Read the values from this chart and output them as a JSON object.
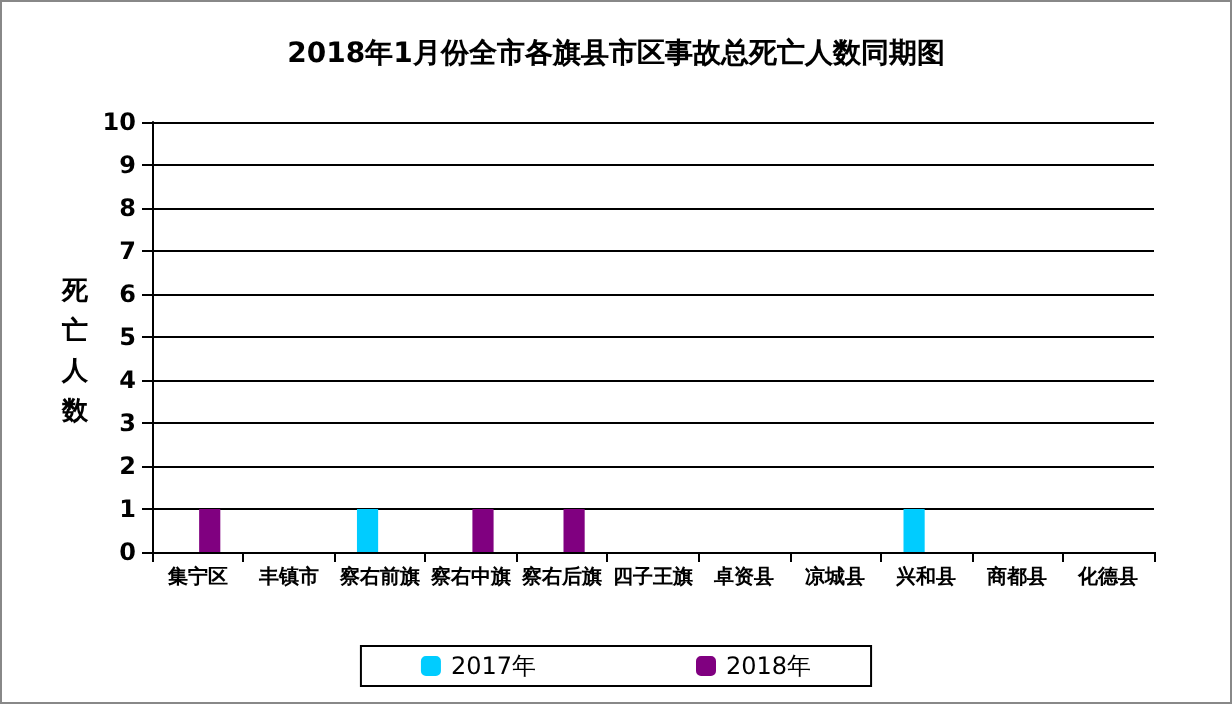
{
  "chart_data": {
    "type": "bar",
    "title": "2018年1月份全市各旗县市区事故总死亡人数同期图",
    "ylabel": "死亡人数",
    "categories": [
      "集宁区",
      "丰镇市",
      "察右前旗",
      "察右中旗",
      "察右后旗",
      "四子王旗",
      "卓资县",
      "凉城县",
      "兴和县",
      "商都县",
      "化德县"
    ],
    "series": [
      {
        "name": "2017年",
        "color": "#00ccff",
        "values": [
          0,
          0,
          1,
          0,
          0,
          0,
          0,
          0,
          1,
          0,
          0
        ]
      },
      {
        "name": "2018年",
        "color": "#800080",
        "values": [
          1,
          0,
          0,
          1,
          1,
          0,
          0,
          0,
          0,
          0,
          0
        ]
      }
    ],
    "ylim": [
      0,
      10
    ],
    "yticks": [
      0,
      1,
      2,
      3,
      4,
      5,
      6,
      7,
      8,
      9,
      10
    ],
    "grid": "y",
    "legend": "bottom"
  }
}
